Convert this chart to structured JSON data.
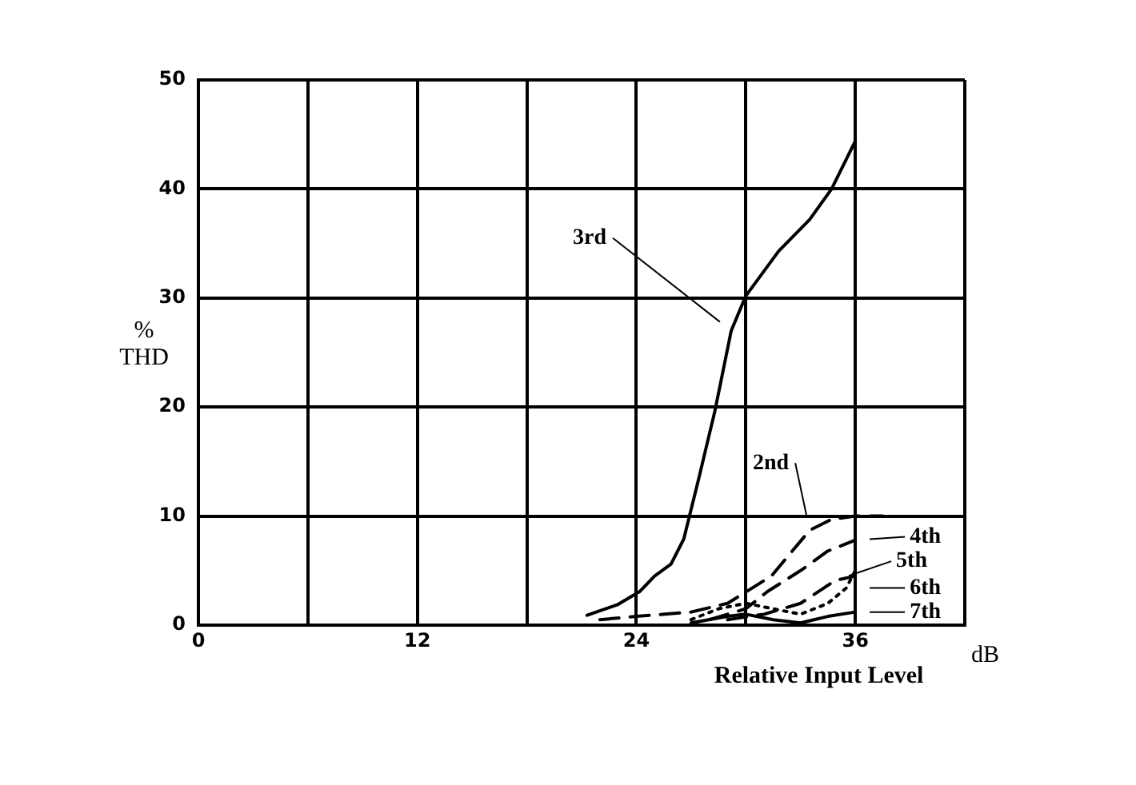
{
  "chart_data": {
    "type": "line",
    "xlabel": "Relative Input Level",
    "ylabel": "% THD",
    "xlim": [
      0,
      42
    ],
    "xticks": [
      0,
      {
        "value": 6,
        "label": null
      },
      12,
      {
        "value": 18,
        "label": null
      },
      24,
      {
        "value": 30,
        "label": null
      },
      36,
      {
        "value": 42,
        "label": null
      }
    ],
    "ylim": [
      0,
      50
    ],
    "yticks": [
      0,
      10,
      20,
      30,
      40,
      50
    ],
    "grid": true,
    "legend": false,
    "marker": "none",
    "series": [
      {
        "color": "#000000",
        "line_style": "solid",
        "x": [
          21.3,
          23.0,
          24.2,
          25.0,
          25.9,
          26.6,
          27.4,
          28.3,
          29.2,
          30.0,
          31.8,
          33.5,
          34.7,
          36.0
        ],
        "values": [
          0.9,
          1.9,
          3.1,
          4.5,
          5.6,
          7.9,
          13.3,
          19.6,
          27.0,
          30.2,
          34.3,
          37.2,
          40.0,
          44.4
        ]
      },
      {
        "color": "#000000",
        "line_style": "dashed",
        "x": [
          22,
          24,
          27,
          29,
          31.4,
          32.3,
          33.5,
          34.7,
          36,
          37.5
        ],
        "values": [
          0.5,
          0.8,
          1.2,
          2.0,
          4.5,
          6.3,
          8.7,
          9.7,
          10.0,
          10.0
        ]
      },
      {
        "color": "#000000",
        "line_style": "dashed",
        "x": [
          28,
          30,
          31.2,
          33,
          34.5,
          36
        ],
        "values": [
          0.5,
          1.5,
          3.1,
          5.0,
          6.8,
          7.8
        ]
      },
      {
        "color": "#000000",
        "line_style": "dashed",
        "x": [
          29,
          31,
          33,
          34.9,
          36
        ],
        "values": [
          0.5,
          1.0,
          2.0,
          4.1,
          4.5
        ]
      },
      {
        "color": "#000000",
        "line_style": "dotted",
        "x": [
          27,
          28.5,
          30,
          31.5,
          33,
          34.5,
          35.5,
          36
        ],
        "values": [
          0.5,
          1.5,
          2.0,
          1.5,
          1.0,
          2.0,
          3.4,
          5.0
        ]
      },
      {
        "color": "#000000",
        "line_style": "solid",
        "x": [
          27,
          29,
          30,
          31.5,
          33,
          34.5,
          36
        ],
        "values": [
          0.2,
          0.8,
          1.0,
          0.5,
          0.2,
          0.8,
          1.2
        ]
      }
    ],
    "annotations": [
      {
        "text": "3rd",
        "x": 29.2,
        "y": 27.0
      },
      {
        "text": "2nd",
        "x": 33.5,
        "y": 8.7
      },
      {
        "text": "4th",
        "x": 36,
        "y": 7.8
      },
      {
        "text": "5th",
        "x": 34.9,
        "y": 4.1
      },
      {
        "text": "6th",
        "x": 36,
        "y": 3.4
      },
      {
        "text": "7th",
        "x": 36,
        "y": 1.2
      },
      "dB"
    ]
  }
}
